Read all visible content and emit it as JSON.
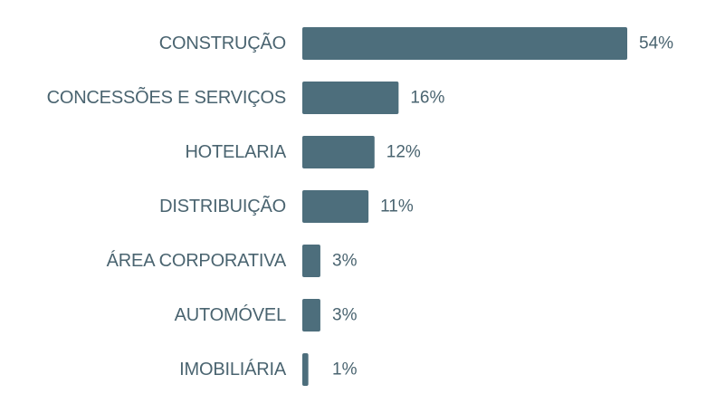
{
  "chart_data": {
    "type": "bar",
    "orientation": "horizontal",
    "categories": [
      "CONSTRUÇÃO",
      "CONCESSÕES E SERVIÇOS",
      "HOTELARIA",
      "DISTRIBUIÇÃO",
      "ÁREA CORPORATIVA",
      "AUTOMÓVEL",
      "IMOBILIÁRIA"
    ],
    "values": [
      54,
      16,
      12,
      11,
      3,
      3,
      1
    ],
    "value_labels": [
      "54%",
      "16%",
      "12%",
      "11%",
      "3%",
      "3%",
      "1%"
    ],
    "unit": "%",
    "xlim": [
      0,
      54
    ],
    "grid": false,
    "legend": "none"
  },
  "colors": {
    "bar": "#4d6e7c",
    "text": "#4a6470",
    "background": "#ffffff"
  }
}
